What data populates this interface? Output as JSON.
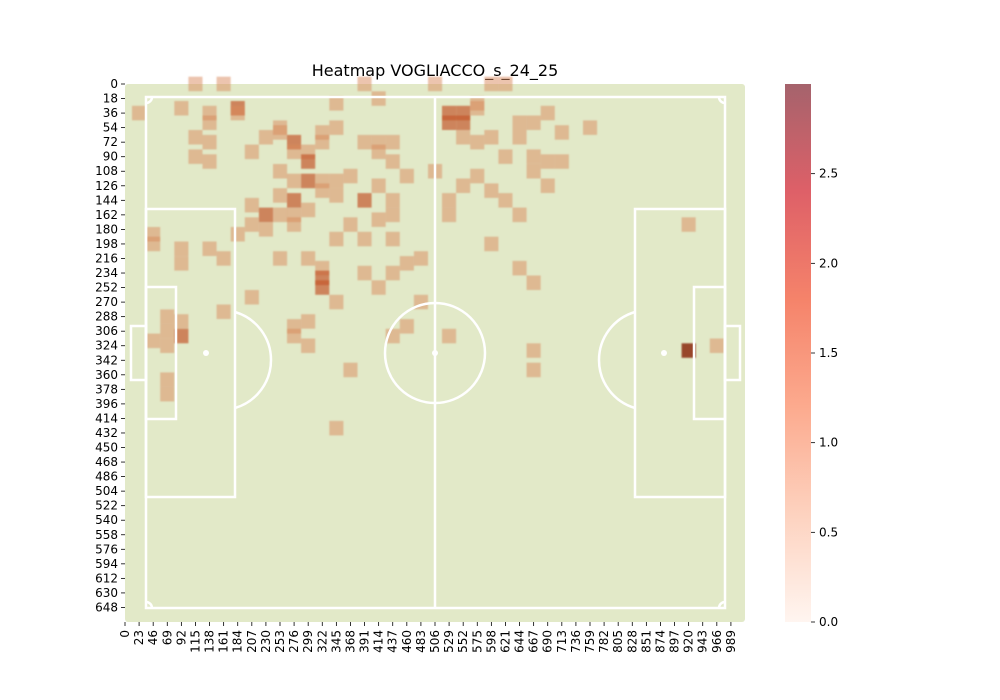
{
  "chart_data": {
    "type": "heatmap",
    "title": "Heatmap VOGLIACCO_s_24_25",
    "x_tick_labels": [
      "0",
      "23",
      "46",
      "69",
      "92",
      "115",
      "138",
      "161",
      "184",
      "207",
      "230",
      "253",
      "276",
      "299",
      "322",
      "345",
      "368",
      "391",
      "414",
      "437",
      "460",
      "483",
      "506",
      "529",
      "552",
      "575",
      "598",
      "621",
      "644",
      "667",
      "690",
      "713",
      "736",
      "759",
      "782",
      "805",
      "828",
      "851",
      "874",
      "897",
      "920",
      "943",
      "966",
      "989"
    ],
    "y_tick_labels": [
      "0",
      "18",
      "36",
      "54",
      "72",
      "90",
      "108",
      "126",
      "144",
      "162",
      "180",
      "198",
      "216",
      "234",
      "252",
      "270",
      "288",
      "306",
      "324",
      "342",
      "360",
      "378",
      "396",
      "414",
      "432",
      "450",
      "468",
      "486",
      "504",
      "522",
      "540",
      "558",
      "576",
      "594",
      "612",
      "630",
      "648"
    ],
    "colorbar_ticks": [
      "0.0",
      "0.5",
      "1.0",
      "1.5",
      "2.0",
      "2.5"
    ],
    "colorbar_range": [
      0,
      3.0
    ],
    "pitch_color": "#e2e9c8",
    "line_color": "#ffffff",
    "cell_color": "#d98a5c",
    "high_color": "#8b2a12",
    "cells": [
      [
        115,
        0,
        1
      ],
      [
        161,
        0,
        1
      ],
      [
        391,
        0,
        1
      ],
      [
        506,
        0,
        1
      ],
      [
        598,
        0,
        1
      ],
      [
        621,
        0,
        1
      ],
      [
        23,
        36,
        1
      ],
      [
        92,
        30,
        1
      ],
      [
        138,
        36,
        1
      ],
      [
        138,
        48,
        1
      ],
      [
        184,
        30,
        2
      ],
      [
        184,
        36,
        1
      ],
      [
        414,
        18,
        1
      ],
      [
        345,
        24,
        1
      ],
      [
        529,
        36,
        2
      ],
      [
        529,
        48,
        2
      ],
      [
        552,
        36,
        2
      ],
      [
        552,
        48,
        2
      ],
      [
        575,
        24,
        1
      ],
      [
        575,
        30,
        1
      ],
      [
        690,
        36,
        1
      ],
      [
        667,
        48,
        1
      ],
      [
        207,
        84,
        1
      ],
      [
        230,
        66,
        1
      ],
      [
        253,
        60,
        1
      ],
      [
        253,
        54,
        1
      ],
      [
        276,
        72,
        2
      ],
      [
        276,
        84,
        1
      ],
      [
        299,
        84,
        1
      ],
      [
        299,
        96,
        2
      ],
      [
        322,
        72,
        1
      ],
      [
        322,
        60,
        1
      ],
      [
        345,
        54,
        1
      ],
      [
        391,
        72,
        1
      ],
      [
        414,
        72,
        1
      ],
      [
        437,
        72,
        1
      ],
      [
        437,
        96,
        1
      ],
      [
        414,
        84,
        1
      ],
      [
        115,
        66,
        1
      ],
      [
        115,
        90,
        1
      ],
      [
        138,
        72,
        1
      ],
      [
        138,
        96,
        1
      ],
      [
        552,
        66,
        1
      ],
      [
        575,
        72,
        1
      ],
      [
        598,
        66,
        1
      ],
      [
        621,
        90,
        1
      ],
      [
        644,
        66,
        1
      ],
      [
        667,
        90,
        1
      ],
      [
        690,
        96,
        1
      ],
      [
        713,
        60,
        1
      ],
      [
        713,
        96,
        1
      ],
      [
        644,
        48,
        1
      ],
      [
        759,
        54,
        1
      ],
      [
        253,
        108,
        1
      ],
      [
        276,
        120,
        1
      ],
      [
        299,
        120,
        2
      ],
      [
        322,
        120,
        1
      ],
      [
        345,
        120,
        1
      ],
      [
        368,
        114,
        1
      ],
      [
        391,
        144,
        2
      ],
      [
        414,
        126,
        1
      ],
      [
        437,
        144,
        1
      ],
      [
        460,
        114,
        1
      ],
      [
        506,
        108,
        1
      ],
      [
        552,
        126,
        1
      ],
      [
        575,
        114,
        1
      ],
      [
        598,
        132,
        1
      ],
      [
        621,
        144,
        1
      ],
      [
        667,
        108,
        1
      ],
      [
        690,
        126,
        1
      ],
      [
        529,
        144,
        1
      ],
      [
        276,
        144,
        2
      ],
      [
        253,
        138,
        1
      ],
      [
        207,
        150,
        1
      ],
      [
        230,
        162,
        2
      ],
      [
        253,
        162,
        1
      ],
      [
        276,
        162,
        1
      ],
      [
        299,
        156,
        1
      ],
      [
        322,
        132,
        1
      ],
      [
        345,
        138,
        1
      ],
      [
        46,
        186,
        1
      ],
      [
        46,
        198,
        1
      ],
      [
        92,
        204,
        1
      ],
      [
        92,
        222,
        1
      ],
      [
        138,
        204,
        1
      ],
      [
        184,
        186,
        1
      ],
      [
        207,
        174,
        1
      ],
      [
        230,
        180,
        1
      ],
      [
        276,
        174,
        1
      ],
      [
        299,
        216,
        1
      ],
      [
        322,
        228,
        1
      ],
      [
        345,
        192,
        1
      ],
      [
        368,
        174,
        1
      ],
      [
        391,
        192,
        1
      ],
      [
        414,
        168,
        1
      ],
      [
        437,
        192,
        1
      ],
      [
        437,
        162,
        1
      ],
      [
        460,
        222,
        1
      ],
      [
        483,
        216,
        1
      ],
      [
        529,
        162,
        1
      ],
      [
        598,
        198,
        1
      ],
      [
        644,
        162,
        1
      ],
      [
        644,
        228,
        1
      ],
      [
        667,
        246,
        1
      ],
      [
        920,
        174,
        1
      ],
      [
        161,
        216,
        1
      ],
      [
        207,
        264,
        1
      ],
      [
        253,
        216,
        1
      ],
      [
        322,
        240,
        2
      ],
      [
        322,
        252,
        2
      ],
      [
        345,
        270,
        1
      ],
      [
        391,
        234,
        1
      ],
      [
        414,
        252,
        1
      ],
      [
        437,
        234,
        1
      ],
      [
        483,
        270,
        1
      ],
      [
        69,
        288,
        1
      ],
      [
        69,
        306,
        1
      ],
      [
        92,
        294,
        1
      ],
      [
        92,
        312,
        2
      ],
      [
        69,
        324,
        1
      ],
      [
        46,
        318,
        1
      ],
      [
        161,
        282,
        1
      ],
      [
        276,
        300,
        1
      ],
      [
        276,
        312,
        1
      ],
      [
        299,
        294,
        1
      ],
      [
        299,
        324,
        1
      ],
      [
        368,
        354,
        1
      ],
      [
        437,
        312,
        1
      ],
      [
        460,
        300,
        1
      ],
      [
        529,
        312,
        1
      ],
      [
        667,
        330,
        1
      ],
      [
        667,
        354,
        1
      ],
      [
        920,
        330,
        3
      ],
      [
        966,
        324,
        1
      ],
      [
        69,
        366,
        1
      ],
      [
        69,
        384,
        1
      ],
      [
        345,
        426,
        1
      ]
    ]
  }
}
